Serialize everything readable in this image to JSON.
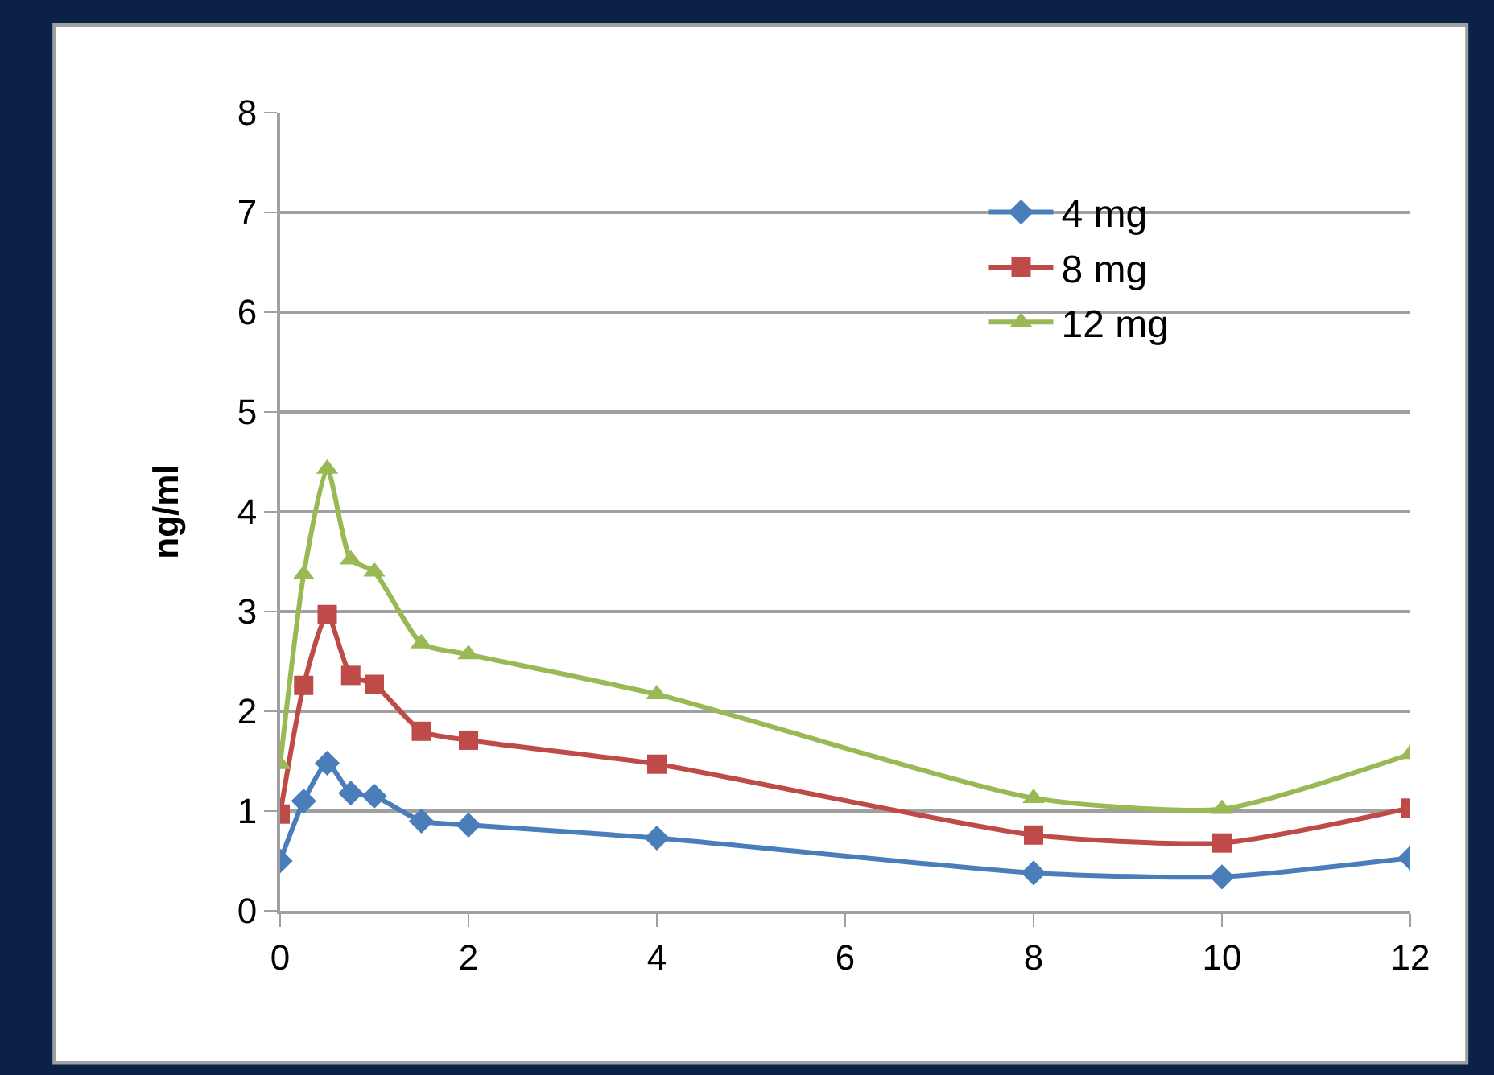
{
  "chart_data": {
    "type": "line",
    "ylabel": "ng/ml",
    "x": [
      0,
      0.25,
      0.5,
      0.75,
      1,
      1.5,
      2,
      4,
      8,
      10,
      12
    ],
    "series": [
      {
        "name": "4 mg",
        "color": "#4a7ebb",
        "marker": "diamond",
        "values": [
          0.5,
          1.1,
          1.48,
          1.18,
          1.15,
          0.9,
          0.86,
          0.73,
          0.38,
          0.34,
          0.53
        ]
      },
      {
        "name": "8 mg",
        "color": "#be4b48",
        "marker": "square",
        "values": [
          0.97,
          2.26,
          2.97,
          2.36,
          2.27,
          1.8,
          1.71,
          1.47,
          0.76,
          0.68,
          1.03
        ]
      },
      {
        "name": "12 mg",
        "color": "#98b954",
        "marker": "triangle",
        "values": [
          1.47,
          3.37,
          4.43,
          3.52,
          3.4,
          2.68,
          2.57,
          2.17,
          1.13,
          1.02,
          1.57
        ]
      }
    ],
    "xlim": [
      0,
      12
    ],
    "xticks": [
      0,
      2,
      4,
      6,
      8,
      10,
      12
    ],
    "ylim": [
      0,
      8
    ],
    "yticks": [
      0,
      1,
      2,
      3,
      4,
      5,
      6,
      7,
      8
    ],
    "grid": "y",
    "legend": "top right",
    "line_style": "solid"
  }
}
